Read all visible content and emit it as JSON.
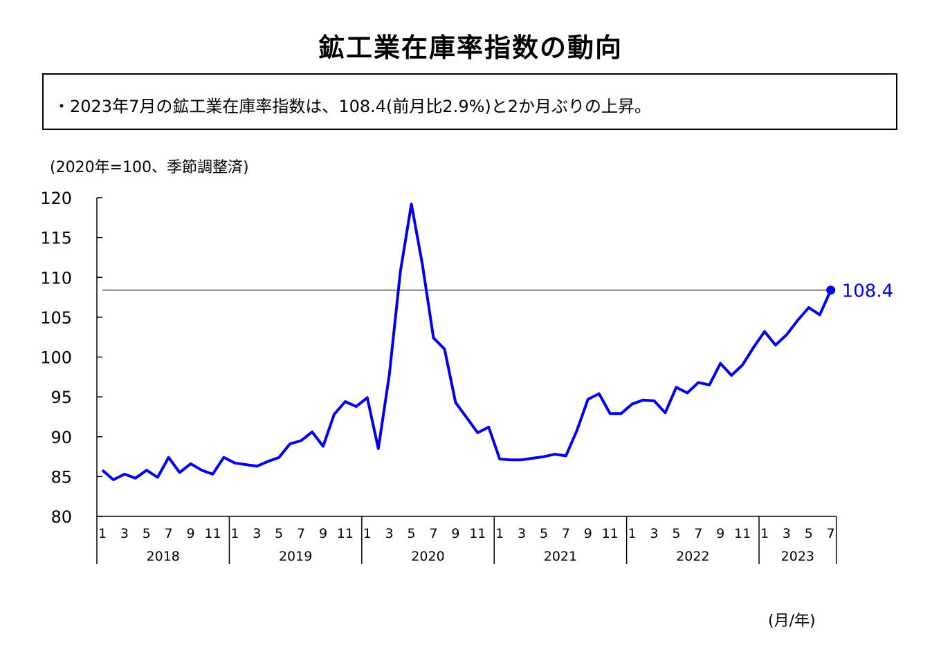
{
  "title": "鉱工業在庫率指数の動向",
  "summary": "・2023年7月の鉱工業在庫率指数は、108.4(前月比2.9%)と2か月ぶりの上昇。",
  "unit_note": "(2020年=100、季節調整済)",
  "x_unit_note": "(月/年)",
  "colors": {
    "series": "#0000ee",
    "reference_line": "#808080",
    "axis": "#000000"
  },
  "chart_data": {
    "type": "line",
    "ylim": [
      80,
      120
    ],
    "yticks": [
      80,
      85,
      90,
      95,
      100,
      105,
      110,
      115,
      120
    ],
    "years": [
      {
        "label": "2018",
        "months": 12
      },
      {
        "label": "2019",
        "months": 12
      },
      {
        "label": "2020",
        "months": 12
      },
      {
        "label": "2021",
        "months": 12
      },
      {
        "label": "2022",
        "months": 12
      },
      {
        "label": "2023",
        "months": 7
      }
    ],
    "month_tick_labels": [
      "1",
      "3",
      "5",
      "7",
      "9",
      "11"
    ],
    "reference_value": 108.4,
    "last_point_label": "108.4",
    "series": [
      {
        "values": [
          85.8,
          84.6,
          85.3,
          84.8,
          85.8,
          84.9,
          87.4,
          85.5,
          86.6,
          85.8,
          85.3,
          87.4,
          86.7,
          86.5,
          86.3,
          86.9,
          87.4,
          89.1,
          89.5,
          90.6,
          88.8,
          92.8,
          94.4,
          93.8,
          94.9,
          88.5,
          97.8,
          110.7,
          119.2,
          111.6,
          102.4,
          101.0,
          94.3,
          92.4,
          90.5,
          91.2,
          87.2,
          87.1,
          87.1,
          87.3,
          87.5,
          87.8,
          87.6,
          90.8,
          94.7,
          95.4,
          92.9,
          92.9,
          94.1,
          94.6,
          94.5,
          93.0,
          96.2,
          95.5,
          96.8,
          96.5,
          99.2,
          97.7,
          99.0,
          101.2,
          103.2,
          101.5,
          102.8,
          104.6,
          106.2,
          105.3,
          108.4
        ]
      }
    ]
  }
}
